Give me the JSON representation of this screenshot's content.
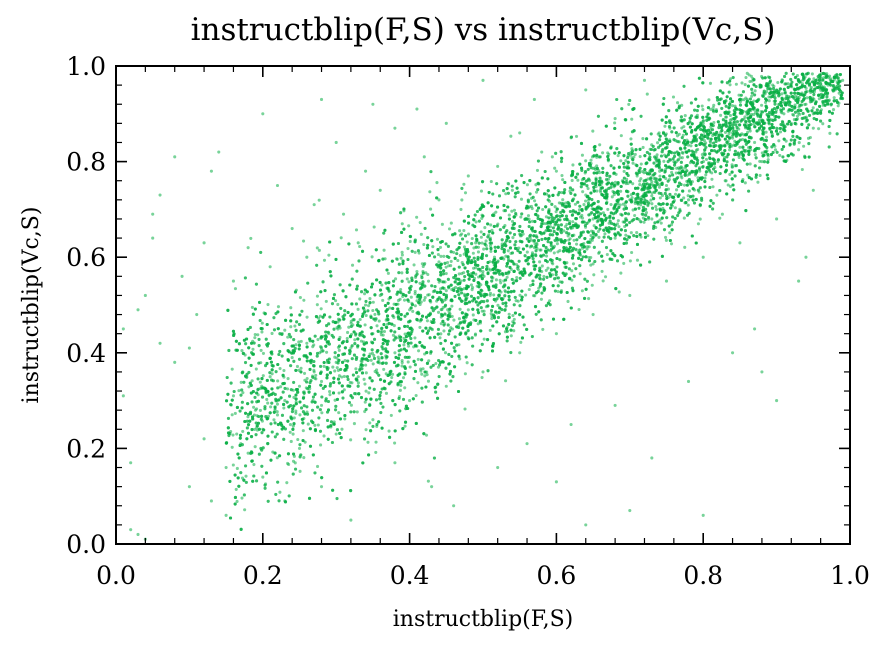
{
  "chart_data": {
    "type": "scatter",
    "title": "instructblip(F,S) vs instructblip(Vc,S)",
    "xlabel": "instructblip(F,S)",
    "ylabel": "instructblip(Vc,S)",
    "xlim": [
      0.0,
      1.0
    ],
    "ylim": [
      0.0,
      1.0
    ],
    "xticks": [
      "0.0",
      "0.2",
      "0.4",
      "0.6",
      "0.8",
      "1.0"
    ],
    "yticks": [
      "0.0",
      "0.2",
      "0.4",
      "0.6",
      "0.8",
      "1.0"
    ],
    "grid": false,
    "legend": "none",
    "marker_color": "#0aaf45",
    "marker_alpha": 0.55,
    "series": [
      {
        "trend": "dense positive correlation along the diagonal, main cloud from about (0.15, 0.2) to (0.98, 0.98)",
        "points": [
          [
            0.01,
            0.45
          ],
          [
            0.01,
            0.31
          ],
          [
            0.02,
            0.17
          ],
          [
            0.02,
            0.03
          ],
          [
            0.03,
            0.02
          ],
          [
            0.04,
            0.01
          ],
          [
            0.03,
            0.49
          ],
          [
            0.04,
            0.52
          ],
          [
            0.05,
            0.64
          ],
          [
            0.05,
            0.69
          ],
          [
            0.06,
            0.73
          ],
          [
            0.08,
            0.81
          ],
          [
            0.06,
            0.42
          ],
          [
            0.08,
            0.38
          ],
          [
            0.09,
            0.56
          ],
          [
            0.1,
            0.41
          ],
          [
            0.11,
            0.48
          ],
          [
            0.12,
            0.63
          ],
          [
            0.13,
            0.78
          ],
          [
            0.14,
            0.82
          ],
          [
            0.12,
            0.22
          ],
          [
            0.13,
            0.09
          ],
          [
            0.15,
            0.16
          ],
          [
            0.16,
            0.31
          ],
          [
            0.17,
            0.21
          ],
          [
            0.18,
            0.19
          ],
          [
            0.19,
            0.28
          ],
          [
            0.2,
            0.24
          ],
          [
            0.21,
            0.35
          ],
          [
            0.22,
            0.27
          ],
          [
            0.23,
            0.3
          ],
          [
            0.24,
            0.39
          ],
          [
            0.25,
            0.33
          ],
          [
            0.26,
            0.42
          ],
          [
            0.27,
            0.36
          ],
          [
            0.28,
            0.29
          ],
          [
            0.29,
            0.44
          ],
          [
            0.3,
            0.38
          ],
          [
            0.31,
            0.47
          ],
          [
            0.32,
            0.41
          ],
          [
            0.33,
            0.35
          ],
          [
            0.34,
            0.5
          ],
          [
            0.35,
            0.44
          ],
          [
            0.36,
            0.52
          ],
          [
            0.37,
            0.46
          ],
          [
            0.38,
            0.4
          ],
          [
            0.39,
            0.55
          ],
          [
            0.4,
            0.49
          ],
          [
            0.41,
            0.57
          ],
          [
            0.42,
            0.51
          ],
          [
            0.43,
            0.45
          ],
          [
            0.44,
            0.59
          ],
          [
            0.45,
            0.53
          ],
          [
            0.46,
            0.61
          ],
          [
            0.47,
            0.55
          ],
          [
            0.48,
            0.49
          ],
          [
            0.49,
            0.63
          ],
          [
            0.5,
            0.57
          ],
          [
            0.51,
            0.64
          ],
          [
            0.52,
            0.59
          ],
          [
            0.53,
            0.53
          ],
          [
            0.54,
            0.66
          ],
          [
            0.55,
            0.61
          ],
          [
            0.56,
            0.68
          ],
          [
            0.57,
            0.62
          ],
          [
            0.58,
            0.57
          ],
          [
            0.59,
            0.7
          ],
          [
            0.6,
            0.65
          ],
          [
            0.61,
            0.71
          ],
          [
            0.62,
            0.66
          ],
          [
            0.63,
            0.61
          ],
          [
            0.64,
            0.73
          ],
          [
            0.65,
            0.68
          ],
          [
            0.66,
            0.74
          ],
          [
            0.67,
            0.7
          ],
          [
            0.68,
            0.64
          ],
          [
            0.69,
            0.76
          ],
          [
            0.7,
            0.72
          ],
          [
            0.71,
            0.77
          ],
          [
            0.72,
            0.73
          ],
          [
            0.73,
            0.68
          ],
          [
            0.74,
            0.79
          ],
          [
            0.75,
            0.75
          ],
          [
            0.76,
            0.8
          ],
          [
            0.77,
            0.77
          ],
          [
            0.78,
            0.72
          ],
          [
            0.79,
            0.82
          ],
          [
            0.8,
            0.79
          ],
          [
            0.81,
            0.84
          ],
          [
            0.82,
            0.8
          ],
          [
            0.83,
            0.76
          ],
          [
            0.84,
            0.86
          ],
          [
            0.85,
            0.83
          ],
          [
            0.86,
            0.87
          ],
          [
            0.87,
            0.84
          ],
          [
            0.88,
            0.8
          ],
          [
            0.89,
            0.89
          ],
          [
            0.9,
            0.87
          ],
          [
            0.91,
            0.9
          ],
          [
            0.92,
            0.88
          ],
          [
            0.93,
            0.85
          ],
          [
            0.94,
            0.92
          ],
          [
            0.95,
            0.9
          ],
          [
            0.96,
            0.94
          ],
          [
            0.97,
            0.96
          ],
          [
            0.98,
            0.98
          ],
          [
            0.97,
            0.92
          ],
          [
            0.95,
            0.87
          ],
          [
            0.93,
            0.93
          ],
          [
            0.99,
            0.97
          ],
          [
            0.98,
            0.95
          ],
          [
            0.96,
            0.98
          ],
          [
            0.2,
            0.9
          ],
          [
            0.28,
            0.93
          ],
          [
            0.35,
            0.92
          ],
          [
            0.41,
            0.91
          ],
          [
            0.5,
            0.97
          ],
          [
            0.57,
            0.93
          ],
          [
            0.64,
            0.95
          ],
          [
            0.72,
            0.97
          ],
          [
            0.3,
            0.84
          ],
          [
            0.38,
            0.87
          ],
          [
            0.45,
            0.88
          ],
          [
            0.55,
            0.86
          ],
          [
            0.22,
            0.75
          ],
          [
            0.27,
            0.71
          ],
          [
            0.34,
            0.78
          ],
          [
            0.42,
            0.81
          ],
          [
            0.48,
            0.77
          ],
          [
            0.62,
            0.85
          ],
          [
            0.68,
            0.89
          ],
          [
            0.18,
            0.62
          ],
          [
            0.24,
            0.66
          ],
          [
            0.31,
            0.69
          ],
          [
            0.36,
            0.74
          ],
          [
            0.44,
            0.72
          ],
          [
            0.52,
            0.79
          ],
          [
            0.58,
            0.82
          ],
          [
            0.16,
            0.55
          ],
          [
            0.21,
            0.58
          ],
          [
            0.26,
            0.6
          ],
          [
            0.33,
            0.63
          ],
          [
            0.39,
            0.67
          ],
          [
            0.47,
            0.7
          ],
          [
            0.54,
            0.74
          ],
          [
            0.6,
            0.78
          ],
          [
            0.66,
            0.81
          ],
          [
            0.74,
            0.86
          ],
          [
            0.8,
            0.88
          ],
          [
            0.86,
            0.93
          ],
          [
            0.9,
            0.95
          ],
          [
            0.2,
            0.14
          ],
          [
            0.25,
            0.2
          ],
          [
            0.3,
            0.23
          ],
          [
            0.35,
            0.26
          ],
          [
            0.4,
            0.3
          ],
          [
            0.45,
            0.33
          ],
          [
            0.5,
            0.36
          ],
          [
            0.55,
            0.4
          ],
          [
            0.6,
            0.44
          ],
          [
            0.65,
            0.48
          ],
          [
            0.7,
            0.52
          ],
          [
            0.75,
            0.55
          ],
          [
            0.8,
            0.6
          ],
          [
            0.85,
            0.63
          ],
          [
            0.9,
            0.68
          ],
          [
            0.95,
            0.74
          ],
          [
            0.32,
            0.05
          ],
          [
            0.46,
            0.08
          ],
          [
            0.52,
            0.16
          ],
          [
            0.6,
            0.13
          ],
          [
            0.64,
            0.04
          ],
          [
            0.7,
            0.07
          ],
          [
            0.8,
            0.06
          ],
          [
            0.73,
            0.18
          ],
          [
            0.88,
            0.36
          ],
          [
            0.93,
            0.55
          ],
          [
            0.9,
            0.3
          ],
          [
            0.84,
            0.4
          ],
          [
            0.94,
            0.6
          ],
          [
            0.87,
            0.45
          ],
          [
            0.78,
            0.34
          ],
          [
            0.68,
            0.29
          ],
          [
            0.62,
            0.25
          ],
          [
            0.56,
            0.21
          ],
          [
            0.43,
            0.12
          ],
          [
            0.38,
            0.17
          ],
          [
            0.28,
            0.12
          ],
          [
            0.23,
            0.09
          ],
          [
            0.15,
            0.06
          ],
          [
            0.1,
            0.12
          ]
        ]
      }
    ]
  }
}
